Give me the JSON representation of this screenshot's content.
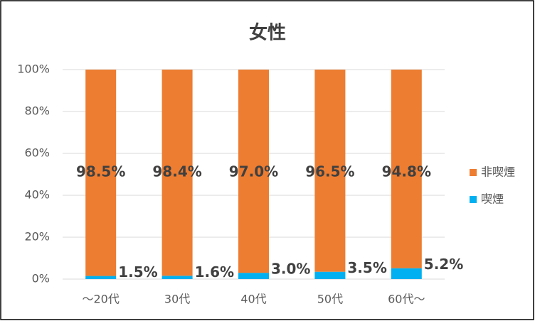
{
  "chart_data": {
    "type": "stacked_bar",
    "title": "女性",
    "categories": [
      "～20代",
      "30代",
      "40代",
      "50代",
      "60代～"
    ],
    "series": [
      {
        "name": "喫煙",
        "color": "#00b0f0",
        "values": [
          1.5,
          1.6,
          3.0,
          3.5,
          5.2
        ],
        "value_labels": [
          "1.5%",
          "1.6%",
          "3.0%",
          "3.5%",
          "5.2%"
        ]
      },
      {
        "name": "非喫煙",
        "color": "#ed7d31",
        "values": [
          98.5,
          98.4,
          97.0,
          96.5,
          94.8
        ],
        "value_labels": [
          "98.5%",
          "98.4%",
          "97.0%",
          "96.5%",
          "94.8%"
        ]
      }
    ],
    "ylim": [
      0,
      100
    ],
    "yticks": [
      {
        "value": 0,
        "label": "0%"
      },
      {
        "value": 20,
        "label": "20%"
      },
      {
        "value": 40,
        "label": "40%"
      },
      {
        "value": 60,
        "label": "60%"
      },
      {
        "value": 80,
        "label": "80%"
      },
      {
        "value": 100,
        "label": "100%"
      }
    ],
    "grid": true,
    "legend": "right"
  }
}
